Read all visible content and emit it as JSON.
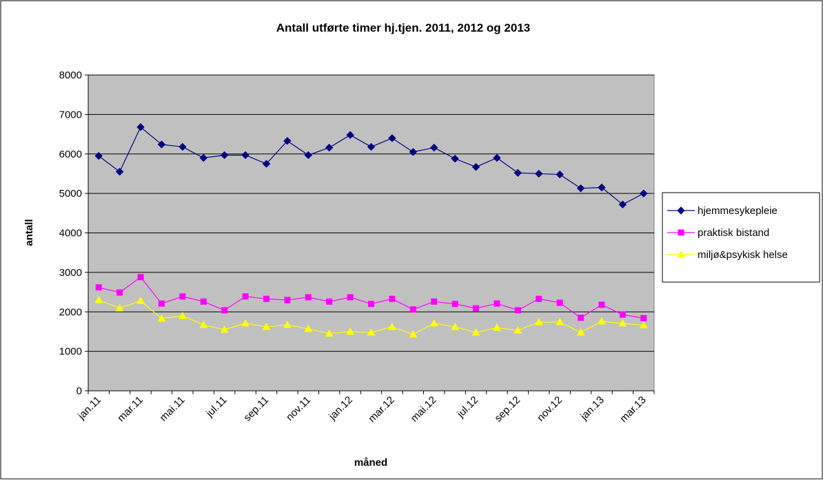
{
  "chart_data": {
    "type": "line",
    "title": "Antall utførte timer hj.tjen. 2011, 2012 og 2013",
    "x_label": "måned",
    "y_label": "antall",
    "categories": [
      "jan.11",
      null,
      "mar.11",
      null,
      "mai.11",
      null,
      "jul.11",
      null,
      "sep.11",
      null,
      "nov.11",
      null,
      "jan.12",
      null,
      "mar.12",
      null,
      "mai.12",
      null,
      "jul.12",
      null,
      "sep.12",
      null,
      "nov.12",
      null,
      "jan.13",
      null,
      "mar.13"
    ],
    "ylim": [
      0,
      8000
    ],
    "yticks": [
      0,
      1000,
      2000,
      3000,
      4000,
      5000,
      6000,
      7000,
      8000
    ],
    "grid": true,
    "legend": "right",
    "series": [
      {
        "name": "hjemmesykepleie",
        "color": "#000080",
        "marker": "diamond",
        "values": [
          5950,
          5550,
          6680,
          6240,
          6180,
          5900,
          5970,
          5970,
          5750,
          6330,
          5970,
          6160,
          6480,
          6180,
          6400,
          6050,
          6160,
          5880,
          5670,
          5900,
          5520,
          5500,
          5480,
          5130,
          5150,
          4720,
          5000
        ]
      },
      {
        "name": "praktisk bistand",
        "color": "#ff00ff",
        "marker": "square",
        "values": [
          2620,
          2490,
          2880,
          2210,
          2390,
          2260,
          2040,
          2390,
          2330,
          2300,
          2370,
          2260,
          2370,
          2200,
          2330,
          2060,
          2260,
          2200,
          2090,
          2210,
          2040,
          2330,
          2230,
          1850,
          2180,
          1930,
          1840
        ]
      },
      {
        "name": "miljø&psykisk helse",
        "color": "#ffff00",
        "marker": "triangle",
        "values": [
          2300,
          2090,
          2280,
          1830,
          1900,
          1670,
          1550,
          1710,
          1620,
          1670,
          1570,
          1450,
          1500,
          1480,
          1620,
          1430,
          1710,
          1620,
          1480,
          1600,
          1530,
          1740,
          1740,
          1480,
          1760,
          1710,
          1660
        ]
      }
    ]
  }
}
